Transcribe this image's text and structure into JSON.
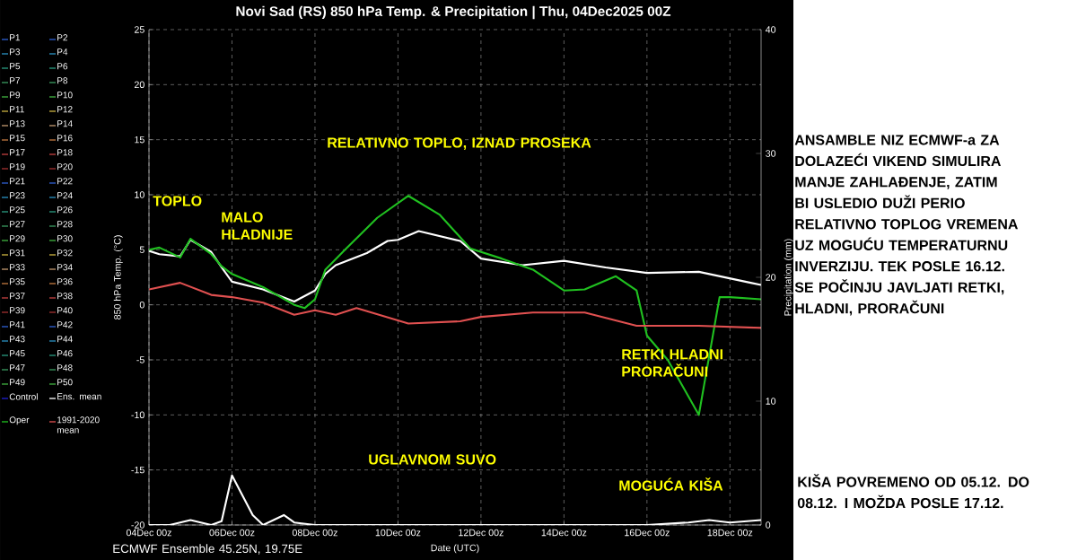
{
  "chart_data": {
    "type": "line",
    "title": "Novi Sad  (RS)  850 hPa Temp. & Precipitation | Thu, 04Dec2025 00Z",
    "xlabel": "Date (UTC)",
    "ylabel": "850 hPa Temp. (°C)",
    "y2label": "Precipitation (mm)",
    "xlim": [
      "2025-12-04T00:00",
      "2025-12-18T18:00"
    ],
    "xticks": [
      {
        "value": "2025-12-04T00:00",
        "label": "04Dec 00z"
      },
      {
        "value": "2025-12-06T00:00",
        "label": "06Dec 00z"
      },
      {
        "value": "2025-12-08T00:00",
        "label": "08Dec 00z"
      },
      {
        "value": "2025-12-10T00:00",
        "label": "10Dec 00z"
      },
      {
        "value": "2025-12-12T00:00",
        "label": "12Dec 00z"
      },
      {
        "value": "2025-12-14T00:00",
        "label": "14Dec 00z"
      },
      {
        "value": "2025-12-16T00:00",
        "label": "16Dec 00z"
      },
      {
        "value": "2025-12-18T00:00",
        "label": "18Dec 00z"
      }
    ],
    "ylim": [
      -20,
      25
    ],
    "yticks": [
      -20,
      -15,
      -10,
      -5,
      0,
      5,
      10,
      15,
      20,
      25
    ],
    "y2lim": [
      0,
      40
    ],
    "y2ticks": [
      0,
      10,
      20,
      30,
      40
    ],
    "grid": true,
    "legend": "left",
    "series": [
      {
        "name": "P1",
        "color": "#2f5fd0"
      },
      {
        "name": "P2",
        "color": "#2f5fd0"
      },
      {
        "name": "P3",
        "color": "#2a90c0"
      },
      {
        "name": "P4",
        "color": "#2a90c0"
      },
      {
        "name": "P5",
        "color": "#2a9a80"
      },
      {
        "name": "P6",
        "color": "#2a9a80"
      },
      {
        "name": "P7",
        "color": "#3a9a60"
      },
      {
        "name": "P8",
        "color": "#3a9a60"
      },
      {
        "name": "P9",
        "color": "#40b040"
      },
      {
        "name": "P10",
        "color": "#40b040"
      },
      {
        "name": "P11",
        "color": "#c8b040"
      },
      {
        "name": "P12",
        "color": "#c8b040"
      },
      {
        "name": "P13",
        "color": "#c09870"
      },
      {
        "name": "P14",
        "color": "#c09870"
      },
      {
        "name": "P15",
        "color": "#c07840"
      },
      {
        "name": "P16",
        "color": "#c07840"
      },
      {
        "name": "P17",
        "color": "#c04040"
      },
      {
        "name": "P18",
        "color": "#c04040"
      },
      {
        "name": "P19",
        "color": "#a03030"
      },
      {
        "name": "P20",
        "color": "#a03030"
      },
      {
        "name": "P21",
        "color": "#2f5fd0"
      },
      {
        "name": "P22",
        "color": "#2f5fd0"
      },
      {
        "name": "P23",
        "color": "#2a90c0"
      },
      {
        "name": "P24",
        "color": "#2a90c0"
      },
      {
        "name": "P25",
        "color": "#2a9a80"
      },
      {
        "name": "P26",
        "color": "#2a9a80"
      },
      {
        "name": "P27",
        "color": "#3a9a60"
      },
      {
        "name": "P28",
        "color": "#3a9a60"
      },
      {
        "name": "P29",
        "color": "#40b040"
      },
      {
        "name": "P30",
        "color": "#40b040"
      },
      {
        "name": "P31",
        "color": "#c8b040"
      },
      {
        "name": "P32",
        "color": "#c8b040"
      },
      {
        "name": "P33",
        "color": "#c09870"
      },
      {
        "name": "P34",
        "color": "#c09870"
      },
      {
        "name": "P35",
        "color": "#c07840"
      },
      {
        "name": "P36",
        "color": "#c07840"
      },
      {
        "name": "P37",
        "color": "#c04040"
      },
      {
        "name": "P38",
        "color": "#c04040"
      },
      {
        "name": "P39",
        "color": "#a03030"
      },
      {
        "name": "P40",
        "color": "#a03030"
      },
      {
        "name": "P41",
        "color": "#2f5fd0"
      },
      {
        "name": "P42",
        "color": "#2f5fd0"
      },
      {
        "name": "P43",
        "color": "#2a90c0"
      },
      {
        "name": "P44",
        "color": "#2a90c0"
      },
      {
        "name": "P45",
        "color": "#2a9a80"
      },
      {
        "name": "P46",
        "color": "#2a9a80"
      },
      {
        "name": "P47",
        "color": "#3a9a60"
      },
      {
        "name": "P48",
        "color": "#3a9a60"
      },
      {
        "name": "P49",
        "color": "#40b040"
      },
      {
        "name": "P50",
        "color": "#40b040"
      },
      {
        "name": "Control",
        "color": "#2020d0"
      },
      {
        "name": "Ens. mean",
        "color": "#ffffff",
        "x": [
          "2025-12-04T00:00",
          "2025-12-04T06:00",
          "2025-12-04T18:00",
          "2025-12-05T00:00",
          "2025-12-05T12:00",
          "2025-12-05T18:00",
          "2025-12-06T00:00",
          "2025-12-06T18:00",
          "2025-12-07T12:00",
          "2025-12-08T00:00",
          "2025-12-08T06:00",
          "2025-12-08T12:00",
          "2025-12-09T06:00",
          "2025-12-09T18:00",
          "2025-12-10T00:00",
          "2025-12-10T12:00",
          "2025-12-11T12:00",
          "2025-12-12T00:00",
          "2025-12-13T00:00",
          "2025-12-14T00:00",
          "2025-12-15T00:00",
          "2025-12-16T00:00",
          "2025-12-17T06:00",
          "2025-12-18T12:00",
          "2025-12-18T18:00"
        ],
        "values": [
          4.9,
          4.6,
          4.4,
          5.9,
          4.8,
          3.4,
          2.1,
          1.4,
          0.3,
          1.3,
          2.8,
          3.6,
          4.7,
          5.8,
          5.9,
          6.7,
          5.8,
          4.2,
          3.6,
          4.0,
          3.4,
          2.9,
          3.0,
          2.0,
          1.8
        ]
      },
      {
        "name": "Oper",
        "color": "#20c020",
        "x": [
          "2025-12-04T00:00",
          "2025-12-04T06:00",
          "2025-12-04T18:00",
          "2025-12-05T00:00",
          "2025-12-05T12:00",
          "2025-12-05T18:00",
          "2025-12-06T00:00",
          "2025-12-06T18:00",
          "2025-12-07T12:00",
          "2025-12-07T18:00",
          "2025-12-08T00:00",
          "2025-12-08T06:00",
          "2025-12-08T18:00",
          "2025-12-09T12:00",
          "2025-12-10T06:00",
          "2025-12-11T00:00",
          "2025-12-11T18:00",
          "2025-12-12T12:00",
          "2025-12-13T06:00",
          "2025-12-14T00:00",
          "2025-12-14T12:00",
          "2025-12-15T06:00",
          "2025-12-15T18:00",
          "2025-12-16T00:00",
          "2025-12-16T12:00",
          "2025-12-17T06:00",
          "2025-12-17T18:00",
          "2025-12-18T00:00",
          "2025-12-18T18:00"
        ],
        "values": [
          5.0,
          5.2,
          4.3,
          6.0,
          4.6,
          3.5,
          2.8,
          1.6,
          0.0,
          -0.3,
          0.5,
          3.2,
          5.1,
          7.9,
          9.9,
          8.2,
          5.1,
          4.2,
          3.2,
          1.3,
          1.4,
          2.6,
          1.3,
          -2.8,
          -5.0,
          -10.0,
          0.7,
          0.7,
          0.5
        ]
      },
      {
        "name": "1991-2020 mean",
        "color": "#e05050",
        "x": [
          "2025-12-04T00:00",
          "2025-12-04T18:00",
          "2025-12-05T12:00",
          "2025-12-06T00:00",
          "2025-12-06T18:00",
          "2025-12-07T12:00",
          "2025-12-08T00:00",
          "2025-12-08T12:00",
          "2025-12-09T00:00",
          "2025-12-10T06:00",
          "2025-12-11T12:00",
          "2025-12-12T00:00",
          "2025-12-13T06:00",
          "2025-12-14T12:00",
          "2025-12-15T18:00",
          "2025-12-17T06:00",
          "2025-12-18T18:00"
        ],
        "values": [
          1.4,
          2.0,
          0.9,
          0.7,
          0.2,
          -0.9,
          -0.5,
          -0.9,
          -0.3,
          -1.7,
          -1.5,
          -1.1,
          -0.7,
          -0.7,
          -1.9,
          -1.9,
          -2.1
        ]
      },
      {
        "color": "#ffffff",
        "axis": "y2",
        "x": [
          "2025-12-04T00:00",
          "2025-12-04T12:00",
          "2025-12-05T00:00",
          "2025-12-05T12:00",
          "2025-12-05T18:00",
          "2025-12-06T00:00",
          "2025-12-06T12:00",
          "2025-12-06T18:00",
          "2025-12-07T06:00",
          "2025-12-07T12:00",
          "2025-12-08T00:00",
          "2025-12-12T00:00",
          "2025-12-16T00:00",
          "2025-12-17T00:00",
          "2025-12-17T12:00",
          "2025-12-18T00:00",
          "2025-12-18T18:00"
        ],
        "values": [
          0,
          0,
          0.4,
          0,
          0.3,
          4.0,
          0.8,
          0,
          0.8,
          0.2,
          0,
          0,
          0,
          0.2,
          0.4,
          0.2,
          0.4
        ]
      }
    ],
    "annotations": [
      "TOPLO",
      "MALO HLADNIJE",
      "RELATIVNO TOPLO, IZNAD PROSEKA",
      "RETKI HLADNI PRORAČUNI",
      "UGLAVNOM SUVO",
      "MOGUĆA KIŠA",
      "ANSAMBLE NIZ ECMWF-a ZA DOLAZEĆI VIKEND SIMULIRA  MANJE ZAHLAĐENJE, ZATIM BI USLEDIO DUŽI PERIO RELATIVNO TOPLOG VREMENA UZ MOGUĆU TEMPERATURNU INVERZIJU. TEK POSLE 16.12. SE POČINJU JAVLJATI RETKI, HLADNI, PRORAČUNI",
      "KIŠA POVREMENO OD 05.12. DO 08.12. I MOŽDA POSLE 17.12.",
      "ECMWF Ensemble  45.25N, 19.75E"
    ]
  }
}
